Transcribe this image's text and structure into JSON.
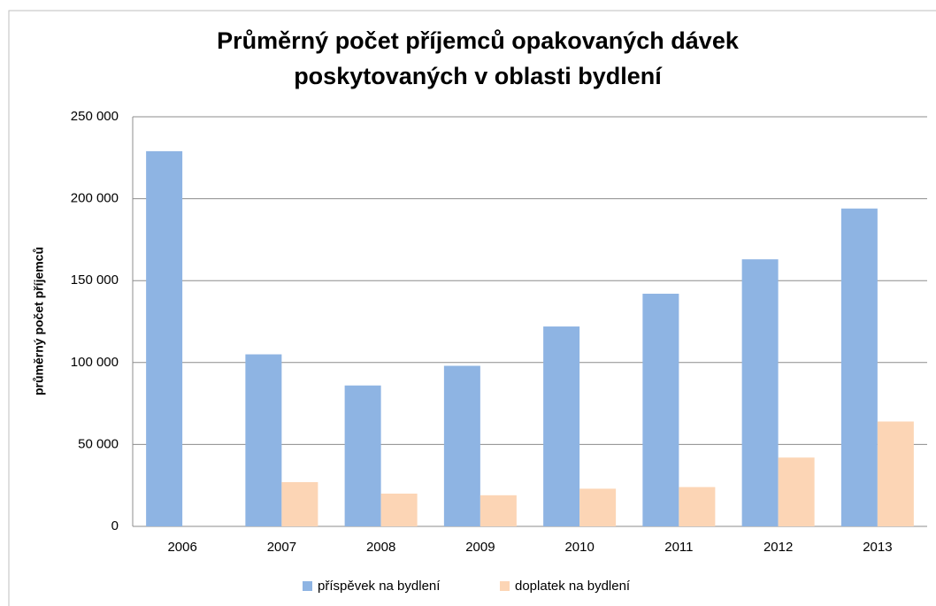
{
  "chart_data": {
    "type": "bar",
    "title": [
      "Průměrný počet příjemců opakovaných dávek",
      "poskytovaných v oblasti bydlení"
    ],
    "y_label": "průměrný počet příjemců",
    "categories": [
      "2006",
      "2007",
      "2008",
      "2009",
      "2010",
      "2011",
      "2012",
      "2013"
    ],
    "series": [
      {
        "name": "příspěvek na bydlení",
        "color": "#8eb4e3",
        "values": [
          229000,
          105000,
          86000,
          98000,
          122000,
          142000,
          163000,
          194000
        ]
      },
      {
        "name": "doplatek na bydlení",
        "color": "#fcd5b5",
        "values": [
          null,
          27000,
          20000,
          19000,
          23000,
          24000,
          42000,
          64000
        ]
      }
    ],
    "ylim": [
      0,
      250000
    ],
    "yticks": [
      0,
      {
        "value": 50000,
        "label": "50 000"
      },
      {
        "value": 100000,
        "label": "100 000"
      },
      {
        "value": 150000,
        "label": "150 000"
      },
      {
        "value": 200000,
        "label": "200 000"
      },
      {
        "value": 250000,
        "label": "250 000"
      }
    ],
    "grid": true
  }
}
